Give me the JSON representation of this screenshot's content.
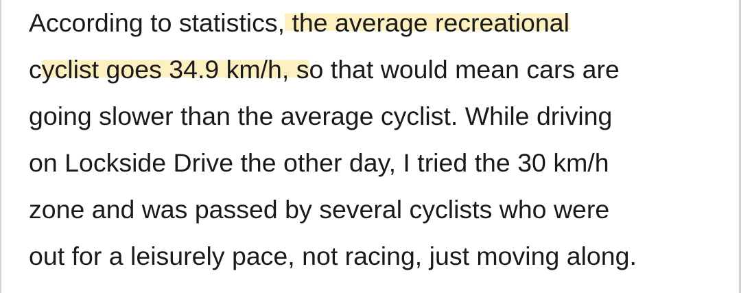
{
  "paragraph": {
    "lines": [
      [
        {
          "text": "According to statistics,"
        },
        {
          "text": " the average recreational",
          "highlight": true
        }
      ],
      [
        {
          "text": "c"
        },
        {
          "text": "yclist goes 34.9 km/h, s",
          "highlight": true
        },
        {
          "text": "o that would mean cars are"
        }
      ],
      [
        {
          "text": "going slower than the average cyclist. While driving"
        }
      ],
      [
        {
          "text": "on Lockside Drive the other day, I tried the 30 km/h"
        }
      ],
      [
        {
          "text": "zone and was passed by several cyclists who were"
        }
      ],
      [
        {
          "text": "out for a leisurely pace, not racing, just moving along."
        }
      ]
    ]
  }
}
